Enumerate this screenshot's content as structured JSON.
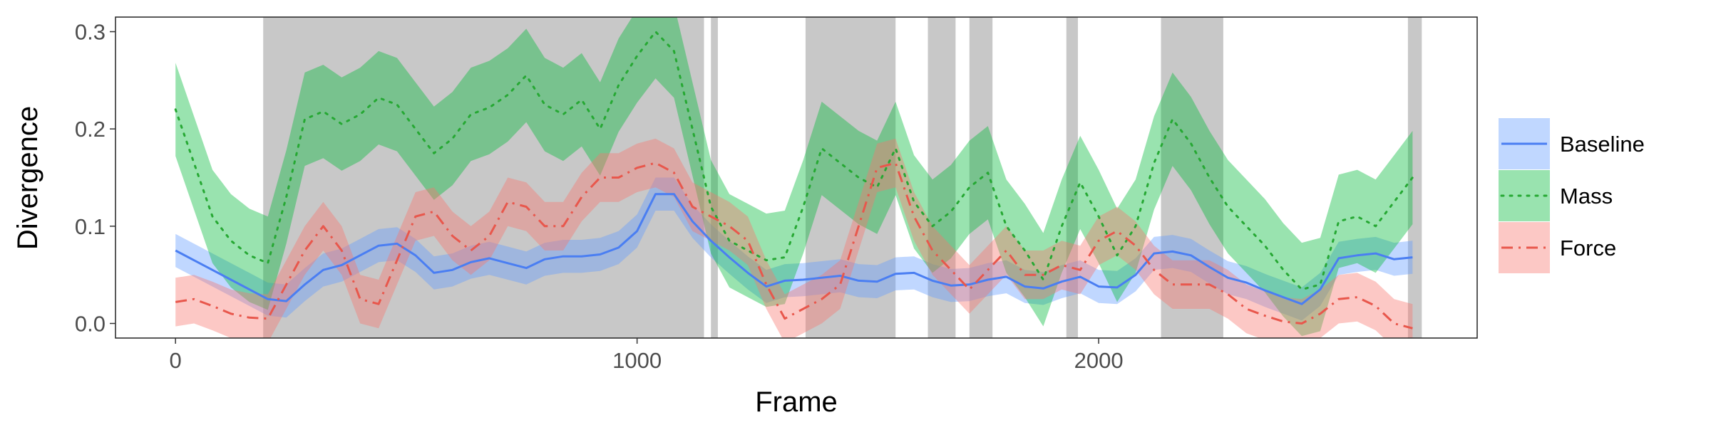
{
  "chart_data": {
    "type": "line",
    "title": "",
    "xlabel": "Frame",
    "ylabel": "Divergence",
    "xlim": [
      -130,
      2820
    ],
    "ylim": [
      -0.015,
      0.315
    ],
    "xticks": [
      0,
      1000,
      2000
    ],
    "yticks": [
      0.0,
      0.1,
      0.2,
      0.3
    ],
    "xtick_labels": [
      "0",
      "1000",
      "2000"
    ],
    "ytick_labels": [
      "0.0",
      "0.1",
      "0.2",
      "0.3"
    ],
    "grid": false,
    "legend_position": "right",
    "shaded_regions": [
      [
        190,
        1145
      ],
      [
        1160,
        1175
      ],
      [
        1365,
        1560
      ],
      [
        1630,
        1690
      ],
      [
        1720,
        1770
      ],
      [
        1930,
        1955
      ],
      [
        2135,
        2270
      ],
      [
        2670,
        2700
      ]
    ],
    "x": [
      0,
      40,
      80,
      120,
      160,
      200,
      240,
      280,
      320,
      360,
      400,
      440,
      480,
      520,
      560,
      600,
      640,
      680,
      720,
      760,
      800,
      840,
      880,
      920,
      960,
      1000,
      1040,
      1080,
      1120,
      1160,
      1200,
      1240,
      1280,
      1320,
      1360,
      1400,
      1440,
      1480,
      1520,
      1560,
      1600,
      1640,
      1680,
      1720,
      1760,
      1800,
      1840,
      1880,
      1920,
      1960,
      2000,
      2040,
      2080,
      2120,
      2160,
      2200,
      2240,
      2280,
      2320,
      2360,
      2400,
      2440,
      2480,
      2520,
      2560,
      2600,
      2640,
      2680
    ],
    "series": [
      {
        "name": "Baseline",
        "color": "#619CFF",
        "line_color": "#4a7ef2",
        "dash": "solid",
        "values": [
          0.075,
          0.065,
          0.055,
          0.045,
          0.035,
          0.025,
          0.023,
          0.04,
          0.055,
          0.06,
          0.07,
          0.08,
          0.082,
          0.07,
          0.052,
          0.055,
          0.063,
          0.067,
          0.062,
          0.057,
          0.066,
          0.069,
          0.069,
          0.071,
          0.078,
          0.095,
          0.133,
          0.133,
          0.105,
          0.085,
          0.068,
          0.052,
          0.038,
          0.044,
          0.045,
          0.047,
          0.049,
          0.044,
          0.043,
          0.051,
          0.052,
          0.044,
          0.039,
          0.04,
          0.045,
          0.048,
          0.038,
          0.036,
          0.043,
          0.048,
          0.038,
          0.037,
          0.05,
          0.072,
          0.074,
          0.07,
          0.058,
          0.047,
          0.042,
          0.034,
          0.027,
          0.02,
          0.035,
          0.067,
          0.07,
          0.072,
          0.066,
          0.068
        ],
        "band": 0.017
      },
      {
        "name": "Mass",
        "color": "#00BA38",
        "line_color": "#26a833",
        "dash": "dotted",
        "values": [
          0.22,
          0.165,
          0.11,
          0.085,
          0.07,
          0.062,
          0.13,
          0.21,
          0.218,
          0.205,
          0.215,
          0.232,
          0.225,
          0.2,
          0.175,
          0.19,
          0.215,
          0.222,
          0.235,
          0.255,
          0.225,
          0.215,
          0.23,
          0.2,
          0.245,
          0.275,
          0.3,
          0.28,
          0.2,
          0.12,
          0.085,
          0.075,
          0.065,
          0.068,
          0.12,
          0.18,
          0.165,
          0.15,
          0.14,
          0.18,
          0.125,
          0.1,
          0.115,
          0.14,
          0.155,
          0.1,
          0.075,
          0.045,
          0.1,
          0.145,
          0.11,
          0.07,
          0.1,
          0.165,
          0.21,
          0.185,
          0.15,
          0.12,
          0.1,
          0.08,
          0.055,
          0.035,
          0.04,
          0.105,
          0.11,
          0.1,
          0.125,
          0.15
        ],
        "band": 0.048
      },
      {
        "name": "Force",
        "color": "#F8766D",
        "line_color": "#e8574c",
        "dash": "dashdot",
        "values": [
          0.022,
          0.025,
          0.018,
          0.01,
          0.006,
          0.005,
          0.04,
          0.075,
          0.1,
          0.075,
          0.025,
          0.02,
          0.065,
          0.11,
          0.115,
          0.09,
          0.075,
          0.09,
          0.125,
          0.12,
          0.1,
          0.1,
          0.13,
          0.15,
          0.15,
          0.16,
          0.165,
          0.155,
          0.12,
          0.11,
          0.1,
          0.085,
          0.04,
          0.005,
          0.015,
          0.025,
          0.04,
          0.1,
          0.16,
          0.165,
          0.11,
          0.075,
          0.055,
          0.035,
          0.055,
          0.075,
          0.05,
          0.05,
          0.06,
          0.055,
          0.085,
          0.095,
          0.08,
          0.055,
          0.04,
          0.04,
          0.04,
          0.03,
          0.015,
          0.008,
          0.002,
          0.0,
          0.01,
          0.025,
          0.027,
          0.018,
          0.0,
          -0.005
        ],
        "band": 0.025
      }
    ]
  }
}
